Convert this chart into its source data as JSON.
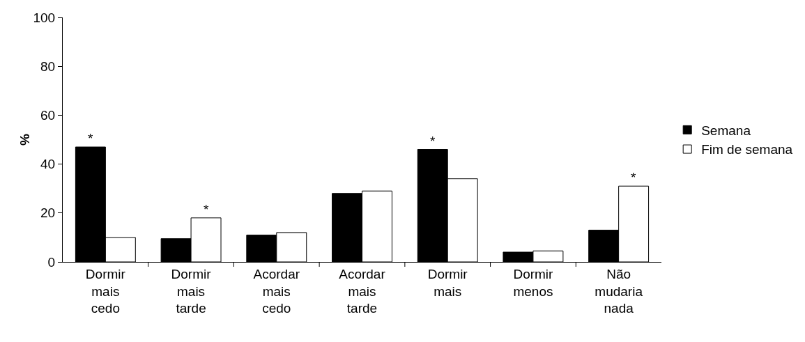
{
  "chart_data": {
    "type": "bar",
    "ylabel": "%",
    "categories": [
      "Dormir mais cedo",
      "Dormir mais tarde",
      "Acordar mais cedo",
      "Acordar mais tarde",
      "Dormir mais",
      "Dormir menos",
      "Não mudaria nada"
    ],
    "series": [
      {
        "name": "Semana",
        "color": "#000000",
        "values": [
          47,
          9.5,
          11,
          28,
          46,
          4,
          13
        ]
      },
      {
        "name": "Fim de semana",
        "color": "#ffffff",
        "values": [
          10,
          18,
          12,
          29,
          34,
          4.5,
          31
        ]
      }
    ],
    "ylim": [
      0,
      100
    ],
    "yticks": [
      0,
      20,
      40,
      60,
      80,
      100
    ],
    "grid": false,
    "legend": "right",
    "annotations": [
      {
        "text": "*",
        "x": "Dormir mais cedo",
        "y": 47
      },
      {
        "text": "*",
        "x": "Dormir mais tarde",
        "y": 18
      },
      {
        "text": "*",
        "x": "Dormir mais",
        "y": 46
      },
      {
        "text": "*",
        "x": "Não mudaria nada",
        "y": 31
      }
    ]
  }
}
